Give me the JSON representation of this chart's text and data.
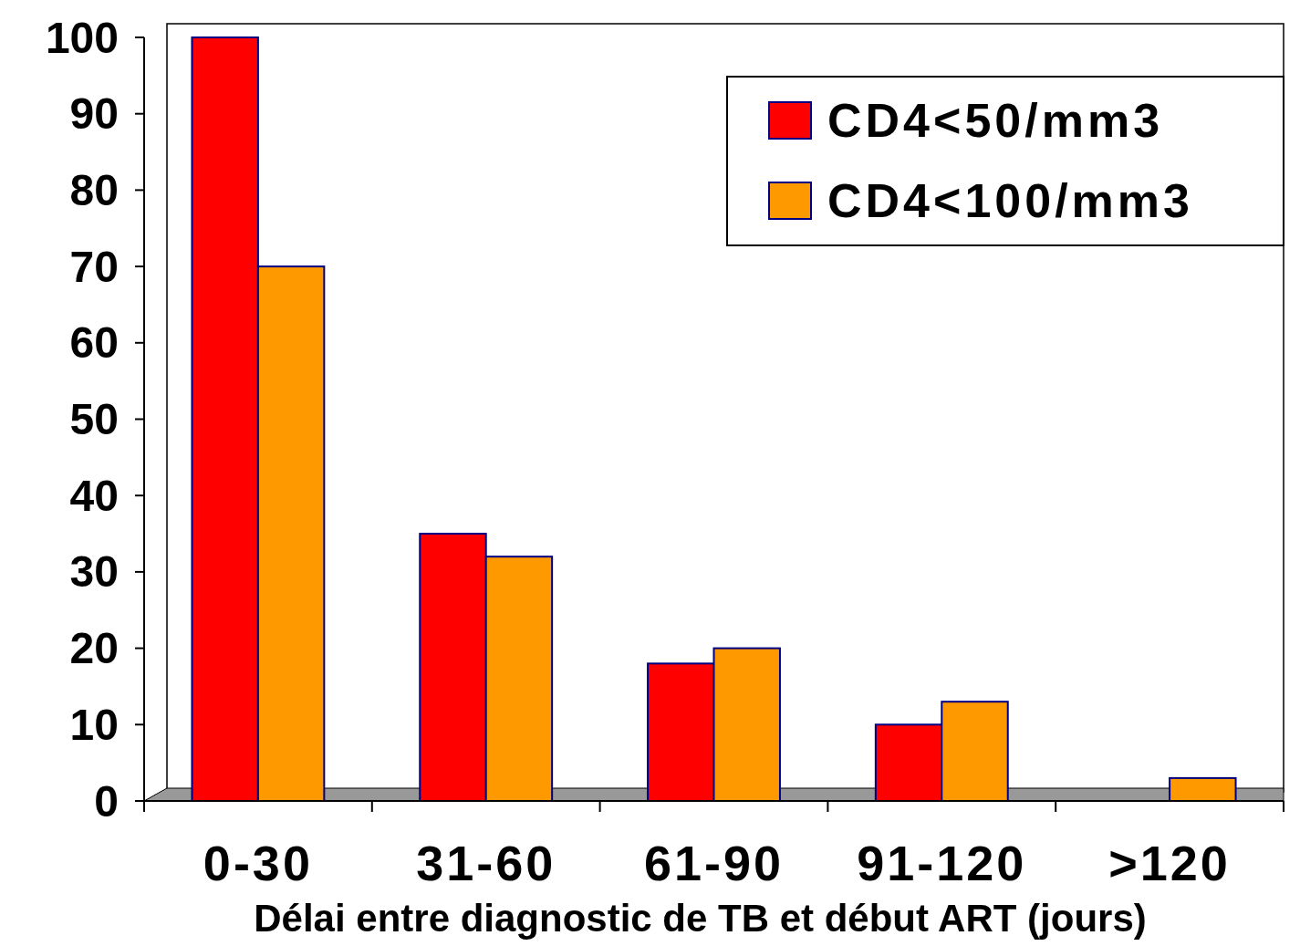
{
  "chart_data": {
    "type": "bar",
    "xlabel": "Délai entre diagnostic de TB et début ART (jours)",
    "categories": [
      "0-30",
      "31-60",
      "61-90",
      "91-120",
      ">120"
    ],
    "series": [
      {
        "name": "CD4<50/mm3",
        "color": "#ff0000",
        "values": [
          100,
          35,
          18,
          10,
          0
        ]
      },
      {
        "name": "CD4<100/mm3",
        "color": "#ff9900",
        "values": [
          70,
          32,
          20,
          13,
          3
        ]
      }
    ],
    "ylim": [
      0,
      100
    ],
    "yticks": [
      0,
      10,
      20,
      30,
      40,
      50,
      60,
      70,
      80,
      90,
      100
    ],
    "grid": false,
    "legend": "top right"
  }
}
